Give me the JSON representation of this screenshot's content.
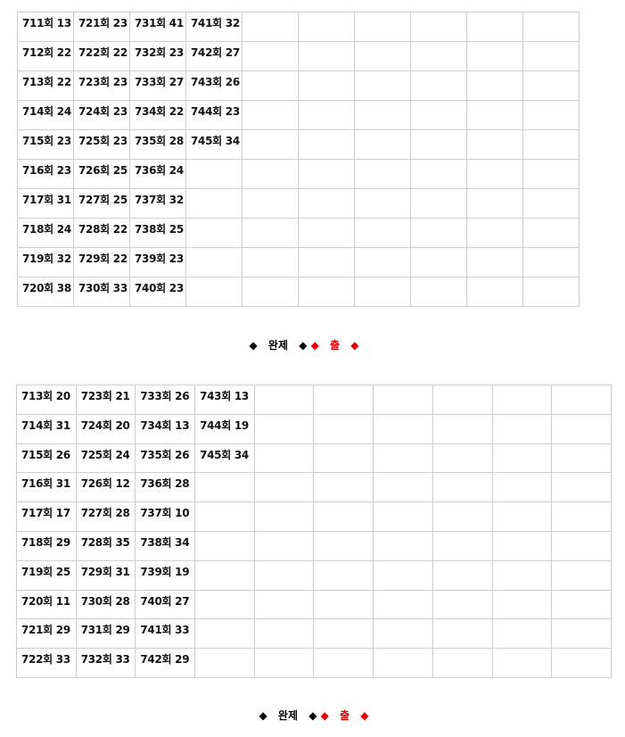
{
  "tables": [
    {
      "rows": [
        [
          "711회 13",
          "721회 23",
          "731회 41",
          "741회 32",
          "",
          "",
          "",
          "",
          "",
          ""
        ],
        [
          "712회 22",
          "722회 22",
          "732회 23",
          "742회 27",
          "",
          "",
          "",
          "",
          "",
          ""
        ],
        [
          "713회 22",
          "723회 23",
          "733회 27",
          "743회 26",
          "",
          "",
          "",
          "",
          "",
          ""
        ],
        [
          "714회 24",
          "724회 23",
          "734회 22",
          "744회 23",
          "",
          "",
          "",
          "",
          "",
          ""
        ],
        [
          "715회 23",
          "725회 23",
          "735회 28",
          "745회 34",
          "",
          "",
          "",
          "",
          "",
          ""
        ],
        [
          "716회 23",
          "726회 25",
          "736회 24",
          "",
          "",
          "",
          "",
          "",
          "",
          ""
        ],
        [
          "717회 31",
          "727회 25",
          "737회 32",
          "",
          "",
          "",
          "",
          "",
          "",
          ""
        ],
        [
          "718회 24",
          "728회 22",
          "738회 25",
          "",
          "",
          "",
          "",
          "",
          "",
          ""
        ],
        [
          "719회 32",
          "729회 22",
          "739회 23",
          "",
          "",
          "",
          "",
          "",
          "",
          ""
        ],
        [
          "720회 38",
          "730회 33",
          "740회 23",
          "",
          "",
          "",
          "",
          "",
          "",
          ""
        ]
      ]
    },
    {
      "rows": [
        [
          "713회 20",
          "723회 21",
          "733회 26",
          "743회 13",
          "",
          "",
          "",
          "",
          "",
          ""
        ],
        [
          "714회 31",
          "724회 20",
          "734회 13",
          "744회 19",
          "",
          "",
          "",
          "",
          "",
          ""
        ],
        [
          "715회 26",
          "725회 24",
          "735회 26",
          "745회 34",
          "",
          "",
          "",
          "",
          "",
          ""
        ],
        [
          "716회 31",
          "726회 12",
          "736회 28",
          "",
          "",
          "",
          "",
          "",
          "",
          ""
        ],
        [
          "717회 17",
          "727회 28",
          "737회 10",
          "",
          "",
          "",
          "",
          "",
          "",
          ""
        ],
        [
          "718회 29",
          "728회 35",
          "738회 34",
          "",
          "",
          "",
          "",
          "",
          "",
          ""
        ],
        [
          "719회 25",
          "729회 31",
          "739회 19",
          "",
          "",
          "",
          "",
          "",
          "",
          ""
        ],
        [
          "720회 11",
          "730회 28",
          "740회 27",
          "",
          "",
          "",
          "",
          "",
          "",
          ""
        ],
        [
          "721회 29",
          "731회 29",
          "741회 33",
          "",
          "",
          "",
          "",
          "",
          "",
          ""
        ],
        [
          "722회 33",
          "732회 33",
          "742회 29",
          "",
          "",
          "",
          "",
          "",
          "",
          ""
        ]
      ]
    }
  ],
  "captions": [
    {
      "diamond": "◆",
      "left_text": "완제",
      "right_text": "출"
    },
    {
      "diamond": "◆",
      "left_text": "완제",
      "right_text": "출"
    }
  ],
  "colors": {
    "black": "#000000",
    "red": "#e00000",
    "border": "#cfcfcf"
  }
}
